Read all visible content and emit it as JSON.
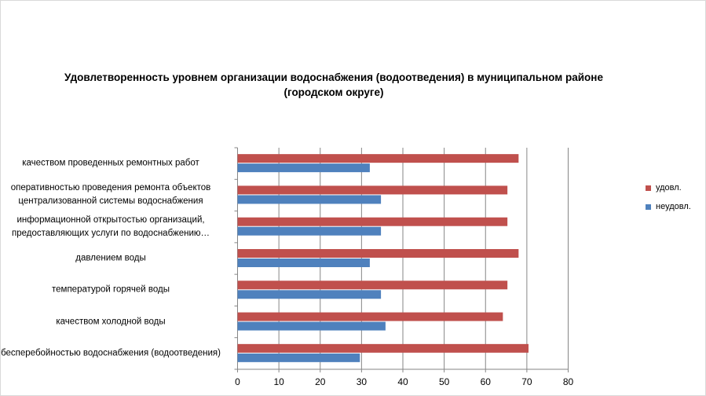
{
  "chart_data": {
    "type": "bar",
    "orientation": "horizontal",
    "title": "Удовлетворенность уровнем организации водоснабжения (водоотведения) в муниципальном районе (городском округе)",
    "categories": [
      "качеством проведенных ремонтных работ",
      "оперативностью проведения ремонта объектов централизованной системы водоснабжения",
      "информационной открытостью организаций, предоставляющих услуги по водоснабжению…",
      "давлением воды",
      "температурой горячей воды",
      "качеством холодной воды",
      "бесперебойностью водоснабжения (водоотведения)"
    ],
    "series": [
      {
        "name": "удовл.",
        "color": "#c0504d",
        "values": [
          68.0,
          65.3,
          65.3,
          68.0,
          65.3,
          64.2,
          70.4
        ]
      },
      {
        "name": "неудовл.",
        "color": "#4f81bd",
        "values": [
          32.0,
          34.7,
          34.7,
          32.0,
          34.7,
          35.8,
          29.6
        ]
      }
    ],
    "xlim": [
      0,
      80
    ],
    "xticks": [
      0,
      10,
      20,
      30,
      40,
      50,
      60,
      70,
      80
    ],
    "grid": true,
    "legend": "right"
  }
}
